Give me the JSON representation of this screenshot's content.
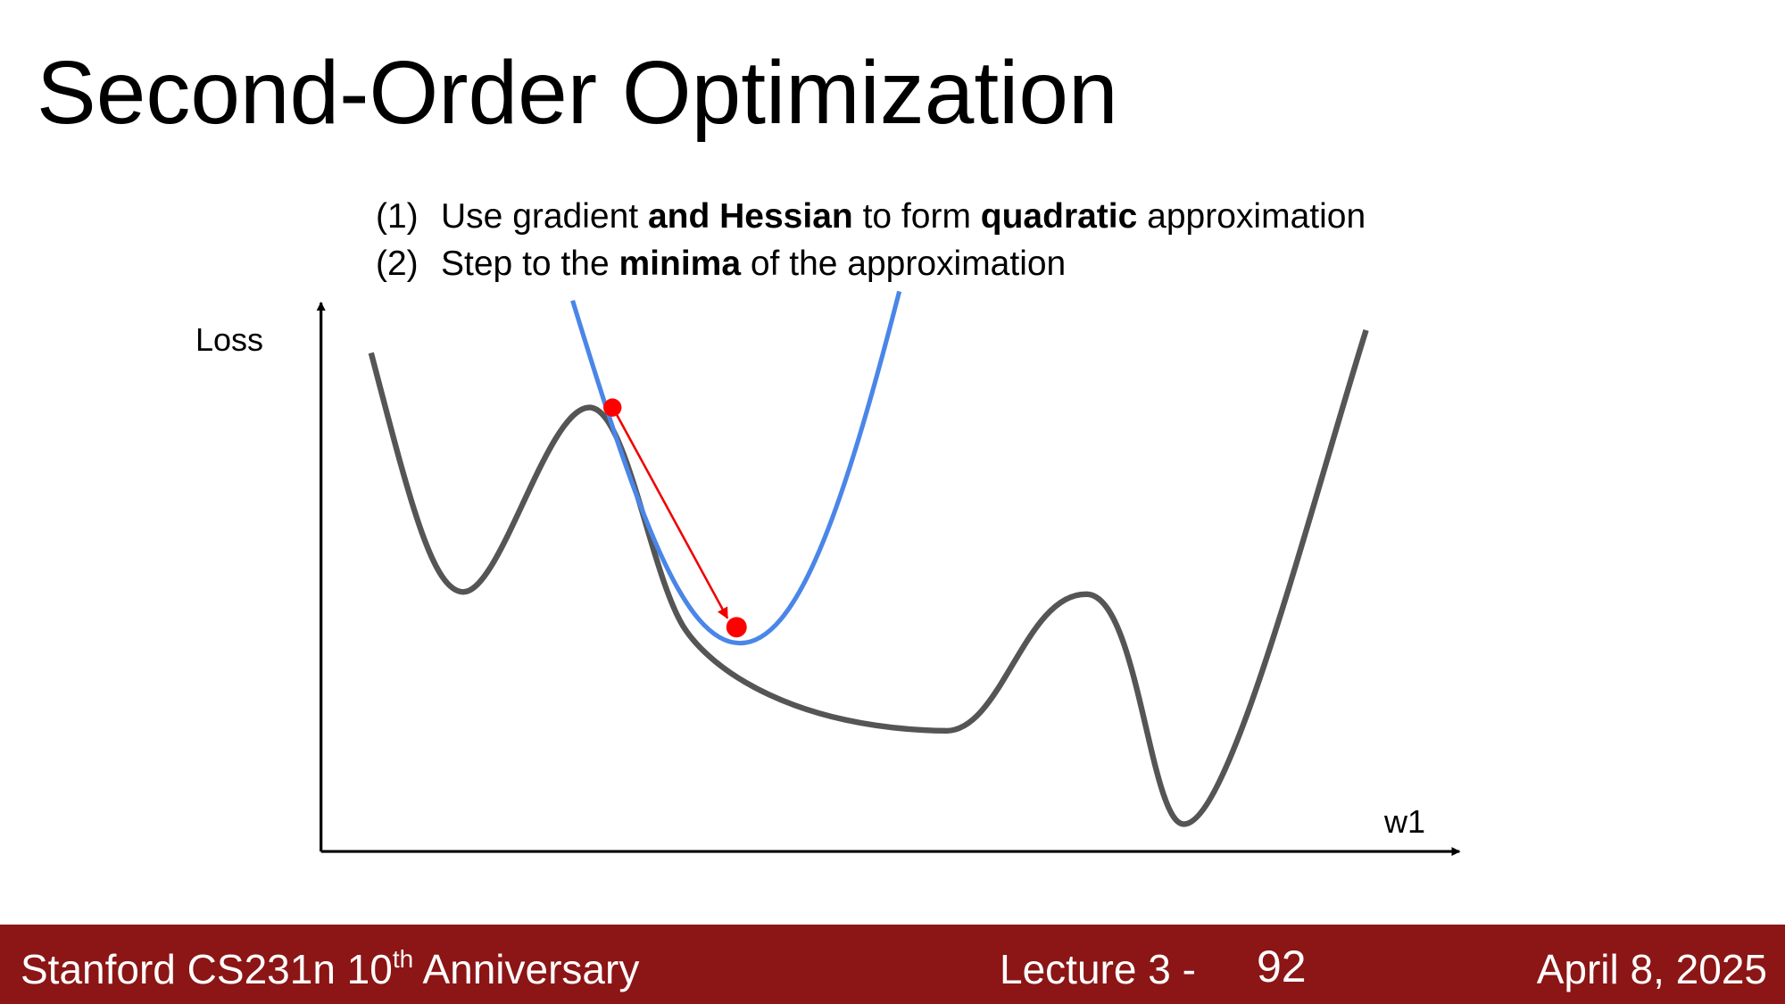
{
  "header": {
    "title": "Second-Order Optimization"
  },
  "steps": [
    {
      "number": "(1)",
      "runs": [
        {
          "text": "Use gradient ",
          "bold": false
        },
        {
          "text": "and Hessian",
          "bold": true
        },
        {
          "text": " to form ",
          "bold": false
        },
        {
          "text": "quadratic",
          "bold": true
        },
        {
          "text": " approximation",
          "bold": false
        }
      ]
    },
    {
      "number": "(2)",
      "runs": [
        {
          "text": "Step to the ",
          "bold": false
        },
        {
          "text": "minima",
          "bold": true
        },
        {
          "text": " of the approximation",
          "bold": false
        }
      ]
    }
  ],
  "diagram": {
    "y_label": "Loss",
    "x_label": "w1"
  },
  "footer": {
    "course": "Stanford CS231n 10",
    "superscript": "th",
    "course_rest": " Anniversary",
    "lecture": "Lecture 3 -",
    "page": "92",
    "date": "April 8, 2025"
  }
}
